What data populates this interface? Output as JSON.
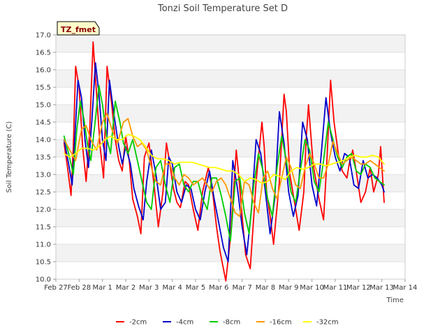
{
  "chart_data": {
    "type": "line",
    "title": "Tonzi Soil Temperature Set D",
    "xlabel": "Time",
    "ylabel": "Soil Temperature (C)",
    "annotation": "TZ_fmet",
    "ylim": [
      10.0,
      17.0
    ],
    "yticks": [
      10.0,
      10.5,
      11.0,
      11.5,
      12.0,
      12.5,
      13.0,
      13.5,
      14.0,
      14.5,
      15.0,
      15.5,
      16.0,
      16.5,
      17.0
    ],
    "ytick_labels": [
      "10.0",
      "10.5",
      "11.0",
      "11.5",
      "12.0",
      "12.5",
      "13.0",
      "13.5",
      "14.0",
      "14.5",
      "15.0",
      "15.5",
      "16.0",
      "16.5",
      "17.0"
    ],
    "xlim": [
      0,
      15
    ],
    "xticks": [
      0,
      1,
      2,
      3,
      4,
      5,
      6,
      7,
      8,
      9,
      10,
      11,
      12,
      13,
      14,
      15
    ],
    "xtick_labels": [
      "Feb 27",
      "Feb 28",
      "Mar 1",
      "Mar 2",
      "Mar 3",
      "Mar 4",
      "Mar 5",
      "Mar 6",
      "Mar 7",
      "Mar 8",
      "Mar 9",
      "Mar 10",
      "Mar 11",
      "Mar 12",
      "Mar 13",
      "Mar 14"
    ],
    "grid": true,
    "legend_position": "bottom",
    "series": [
      {
        "name": "-2cm",
        "color": "#ff0000",
        "x": [
          0.35,
          0.5,
          0.65,
          0.75,
          0.85,
          1.0,
          1.15,
          1.3,
          1.45,
          1.6,
          1.75,
          1.9,
          2.05,
          2.2,
          2.4,
          2.55,
          2.7,
          2.85,
          3.0,
          3.15,
          3.3,
          3.5,
          3.65,
          3.8,
          4.0,
          4.2,
          4.4,
          4.6,
          4.75,
          4.9,
          5.05,
          5.2,
          5.35,
          5.55,
          5.7,
          5.9,
          6.1,
          6.3,
          6.55,
          6.75,
          6.9,
          7.05,
          7.3,
          7.5,
          7.75,
          7.85,
          8.0,
          8.15,
          8.35,
          8.6,
          8.85,
          8.95,
          9.05,
          9.2,
          9.35,
          9.6,
          9.8,
          9.9,
          10.05,
          10.25,
          10.45,
          10.65,
          10.75,
          10.85,
          11.05,
          11.3,
          11.5,
          11.65,
          11.8,
          11.95,
          12.15,
          12.3,
          12.5,
          12.6,
          12.75,
          12.9,
          13.1,
          13.3,
          13.5,
          13.65,
          13.85,
          13.95,
          14.1
        ],
        "y": [
          13.9,
          13.2,
          12.4,
          13.8,
          16.1,
          15.5,
          13.8,
          12.8,
          14.2,
          16.8,
          15.3,
          13.8,
          12.9,
          16.1,
          15.0,
          14.0,
          13.4,
          13.1,
          14.1,
          13.4,
          12.3,
          11.8,
          11.3,
          13.5,
          13.9,
          12.8,
          11.5,
          12.5,
          13.9,
          13.3,
          12.6,
          12.2,
          12.05,
          12.8,
          12.7,
          12.0,
          11.4,
          12.5,
          13.2,
          12.4,
          11.5,
          10.8,
          9.95,
          11.2,
          13.7,
          13.0,
          11.8,
          10.7,
          10.3,
          12.8,
          14.5,
          13.8,
          12.5,
          11.8,
          11.0,
          12.8,
          15.3,
          14.8,
          13.0,
          12.2,
          11.4,
          12.5,
          14.0,
          15.0,
          13.3,
          12.3,
          11.7,
          13.5,
          15.7,
          14.5,
          13.5,
          13.1,
          12.9,
          13.3,
          13.7,
          13.1,
          12.2,
          12.5,
          13.2,
          12.5,
          13.0,
          13.8,
          12.2
        ]
      },
      {
        "name": "-4cm",
        "color": "#0000cc",
        "x": [
          0.35,
          0.55,
          0.7,
          0.8,
          0.95,
          1.1,
          1.25,
          1.4,
          1.55,
          1.7,
          1.85,
          2.0,
          2.15,
          2.3,
          2.5,
          2.7,
          2.85,
          3.0,
          3.2,
          3.35,
          3.55,
          3.75,
          3.9,
          4.1,
          4.3,
          4.5,
          4.7,
          4.85,
          5.0,
          5.2,
          5.4,
          5.6,
          5.8,
          6.0,
          6.2,
          6.4,
          6.6,
          6.8,
          7.0,
          7.2,
          7.4,
          7.6,
          7.8,
          8.0,
          8.2,
          8.4,
          8.6,
          8.8,
          9.0,
          9.2,
          9.4,
          9.6,
          9.8,
          10.0,
          10.2,
          10.4,
          10.6,
          10.8,
          11.0,
          11.2,
          11.4,
          11.6,
          11.8,
          12.0,
          12.2,
          12.4,
          12.6,
          12.8,
          13.0,
          13.2,
          13.4,
          13.6,
          13.8,
          14.0,
          14.1
        ],
        "y": [
          14.0,
          13.3,
          12.7,
          13.9,
          15.7,
          15.2,
          14.0,
          13.2,
          14.6,
          16.2,
          15.3,
          14.0,
          13.4,
          15.7,
          14.7,
          13.8,
          13.3,
          13.8,
          13.3,
          12.6,
          12.1,
          11.7,
          12.8,
          13.7,
          13.0,
          12.0,
          12.2,
          13.5,
          13.3,
          12.5,
          12.2,
          12.7,
          12.6,
          12.0,
          11.7,
          12.5,
          13.1,
          12.3,
          11.6,
          10.9,
          10.5,
          13.4,
          12.6,
          11.5,
          10.7,
          12.0,
          14.0,
          13.6,
          12.5,
          11.3,
          12.3,
          14.8,
          13.9,
          12.5,
          11.8,
          12.4,
          14.5,
          14.0,
          12.7,
          12.1,
          13.6,
          15.2,
          14.2,
          13.5,
          13.1,
          13.6,
          13.5,
          12.7,
          12.6,
          13.4,
          12.9,
          13.0,
          12.9,
          12.7,
          12.5
        ]
      },
      {
        "name": "-8cm",
        "color": "#00cc00",
        "x": [
          0.35,
          0.55,
          0.75,
          0.9,
          1.05,
          1.2,
          1.35,
          1.5,
          1.7,
          1.85,
          2.0,
          2.2,
          2.35,
          2.55,
          2.75,
          2.9,
          3.1,
          3.3,
          3.5,
          3.7,
          3.9,
          4.1,
          4.3,
          4.5,
          4.7,
          4.9,
          5.1,
          5.3,
          5.5,
          5.7,
          5.9,
          6.1,
          6.3,
          6.5,
          6.7,
          6.9,
          7.1,
          7.3,
          7.5,
          7.7,
          7.9,
          8.1,
          8.3,
          8.5,
          8.7,
          8.9,
          9.1,
          9.3,
          9.5,
          9.7,
          9.9,
          10.1,
          10.3,
          10.5,
          10.7,
          10.9,
          11.1,
          11.3,
          11.5,
          11.7,
          11.9,
          12.1,
          12.3,
          12.5,
          12.7,
          12.9,
          13.1,
          13.3,
          13.5,
          13.7,
          13.9,
          14.1
        ],
        "y": [
          14.1,
          13.6,
          13.0,
          14.3,
          15.1,
          14.6,
          13.9,
          13.4,
          14.6,
          15.55,
          15.0,
          14.0,
          13.6,
          15.1,
          14.5,
          13.9,
          13.6,
          14.0,
          13.4,
          12.8,
          12.2,
          12.0,
          13.2,
          13.4,
          12.7,
          12.2,
          13.2,
          13.3,
          12.7,
          12.5,
          12.8,
          12.8,
          12.3,
          12.0,
          12.9,
          12.9,
          12.4,
          11.8,
          11.1,
          12.8,
          12.9,
          11.9,
          11.3,
          12.7,
          13.6,
          13.1,
          12.3,
          11.8,
          13.2,
          14.1,
          13.4,
          12.5,
          12.2,
          13.1,
          14.0,
          13.7,
          12.8,
          12.5,
          13.4,
          14.5,
          14.0,
          13.5,
          13.2,
          13.5,
          13.6,
          13.1,
          13.0,
          13.3,
          13.2,
          12.9,
          12.8,
          12.7
        ]
      },
      {
        "name": "-16cm",
        "color": "#ff9900",
        "x": [
          0.35,
          0.6,
          0.85,
          1.1,
          1.3,
          1.5,
          1.75,
          2.0,
          2.2,
          2.4,
          2.65,
          2.9,
          3.1,
          3.3,
          3.5,
          3.7,
          3.9,
          4.1,
          4.3,
          4.5,
          4.7,
          4.9,
          5.1,
          5.3,
          5.5,
          5.7,
          5.9,
          6.1,
          6.3,
          6.5,
          6.7,
          6.9,
          7.1,
          7.3,
          7.5,
          7.7,
          7.9,
          8.1,
          8.3,
          8.5,
          8.7,
          8.9,
          9.1,
          9.3,
          9.5,
          9.7,
          9.9,
          10.1,
          10.3,
          10.5,
          10.7,
          10.9,
          11.1,
          11.3,
          11.5,
          11.7,
          11.9,
          12.1,
          12.3,
          12.5,
          12.7,
          12.9,
          13.1,
          13.3,
          13.5,
          13.7,
          13.9,
          14.1
        ],
        "y": [
          14.0,
          13.7,
          13.4,
          14.3,
          14.4,
          14.0,
          13.7,
          14.5,
          14.75,
          14.3,
          13.9,
          14.5,
          14.6,
          14.1,
          13.8,
          13.9,
          13.7,
          13.2,
          12.8,
          12.7,
          13.3,
          13.3,
          12.9,
          12.7,
          13.0,
          12.9,
          12.7,
          12.8,
          12.9,
          12.7,
          12.5,
          12.8,
          12.9,
          12.7,
          12.3,
          11.9,
          11.8,
          12.8,
          12.7,
          12.2,
          11.9,
          12.9,
          13.1,
          12.6,
          12.3,
          12.9,
          13.5,
          13.2,
          12.7,
          12.6,
          13.2,
          13.6,
          13.3,
          12.9,
          12.9,
          13.3,
          13.95,
          13.6,
          13.3,
          13.4,
          13.5,
          13.4,
          13.3,
          13.3,
          13.4,
          13.3,
          13.2,
          13.1
        ]
      },
      {
        "name": "-32cm",
        "color": "#ffff00",
        "x": [
          0.35,
          0.6,
          0.85,
          1.1,
          1.35,
          1.6,
          1.85,
          2.1,
          2.35,
          2.6,
          2.85,
          3.1,
          3.35,
          3.6,
          3.85,
          4.1,
          4.35,
          4.6,
          4.85,
          5.1,
          5.35,
          5.6,
          5.85,
          6.1,
          6.35,
          6.6,
          6.85,
          7.1,
          7.35,
          7.6,
          7.85,
          8.1,
          8.35,
          8.6,
          8.85,
          9.1,
          9.35,
          9.6,
          9.85,
          10.1,
          10.35,
          10.6,
          10.85,
          11.1,
          11.35,
          11.6,
          11.85,
          12.1,
          12.35,
          12.6,
          12.85,
          13.1,
          13.35,
          13.6,
          13.85,
          14.1
        ],
        "y": [
          13.6,
          13.5,
          13.6,
          13.75,
          13.75,
          13.7,
          13.8,
          14.0,
          14.1,
          14.0,
          14.0,
          14.15,
          14.1,
          14.0,
          13.8,
          13.55,
          13.45,
          13.45,
          13.4,
          13.3,
          13.35,
          13.35,
          13.35,
          13.3,
          13.25,
          13.2,
          13.2,
          13.15,
          13.1,
          13.1,
          13.0,
          12.8,
          12.9,
          12.85,
          12.75,
          12.8,
          13.0,
          12.95,
          12.85,
          13.1,
          13.2,
          13.15,
          13.2,
          13.3,
          13.3,
          13.25,
          13.3,
          13.35,
          13.4,
          13.5,
          13.55,
          13.5,
          13.5,
          13.55,
          13.5,
          13.3
        ]
      }
    ]
  }
}
